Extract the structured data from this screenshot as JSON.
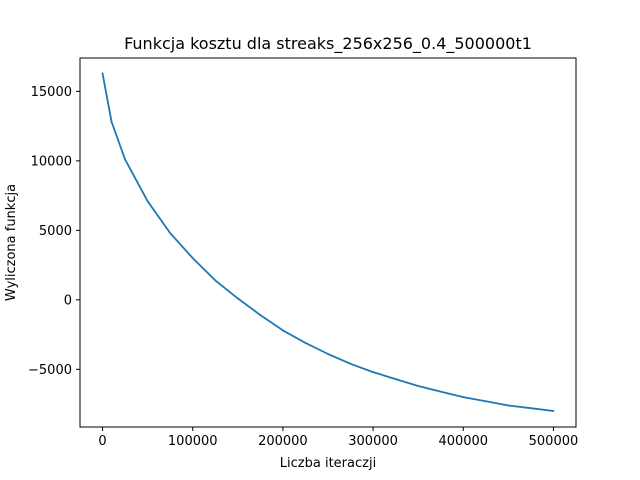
{
  "chart_data": {
    "type": "line",
    "title": "Funkcja kosztu dla streaks_256x256_0.4_500000t1",
    "xlabel": "Liczba iteraczji",
    "ylabel": "Wyliczona funkcja",
    "xlim": [
      -25000,
      525000
    ],
    "ylim": [
      -9150,
      17400
    ],
    "xticks": [
      0,
      100000,
      200000,
      300000,
      400000,
      500000
    ],
    "xtick_labels": [
      "0",
      "100000",
      "200000",
      "300000",
      "400000",
      "500000"
    ],
    "yticks": [
      -5000,
      0,
      5000,
      10000,
      15000
    ],
    "ytick_labels": [
      "−5000",
      "0",
      "5000",
      "10000",
      "15000"
    ],
    "grid": false,
    "legend": "none",
    "series": [
      {
        "color": "#1f77b4",
        "x": [
          0,
          10000,
          25000,
          50000,
          75000,
          100000,
          125000,
          150000,
          175000,
          200000,
          225000,
          250000,
          275000,
          300000,
          325000,
          350000,
          375000,
          400000,
          425000,
          450000,
          475000,
          500000
        ],
        "y": [
          16300,
          12800,
          10100,
          7100,
          4800,
          3000,
          1400,
          100,
          -1100,
          -2200,
          -3100,
          -3900,
          -4600,
          -5200,
          -5700,
          -6200,
          -6600,
          -7000,
          -7300,
          -7600,
          -7800,
          -8000
        ]
      }
    ]
  }
}
